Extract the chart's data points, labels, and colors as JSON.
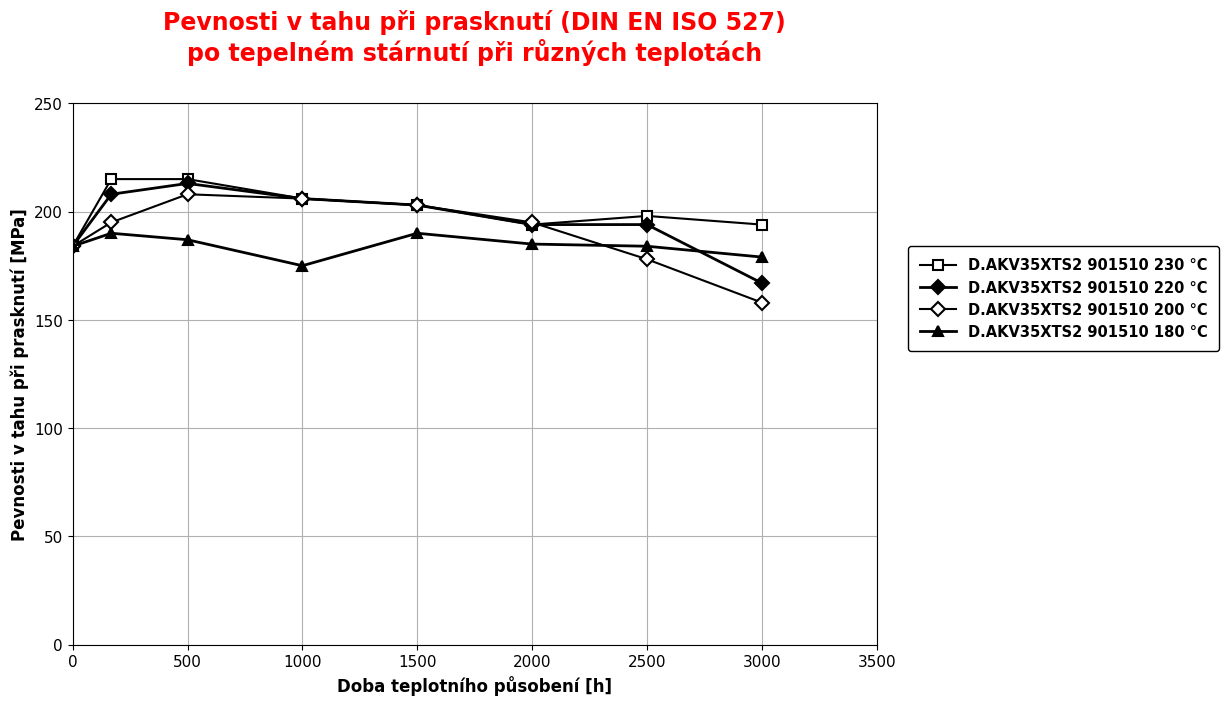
{
  "title_line1": "Pevnosti v tahu při prasknutí (DIN EN ISO 527)",
  "title_line2": "po tepelném stárnutí při různých teplotách",
  "title_color": "#ff0000",
  "xlabel": "Doba teplotního působení [h]",
  "ylabel": "Pevnosti v tahu při prasknutí [MPa]",
  "xlim": [
    0,
    3500
  ],
  "ylim": [
    0,
    250
  ],
  "xticks": [
    0,
    500,
    1000,
    1500,
    2000,
    2500,
    3000,
    3500
  ],
  "yticks": [
    0,
    50,
    100,
    150,
    200,
    250
  ],
  "series": [
    {
      "label": "D.AKV35XTS2 901510 230 °C",
      "x": [
        0,
        168,
        500,
        1000,
        1500,
        2000,
        2500,
        3000
      ],
      "y": [
        184,
        215,
        215,
        206,
        203,
        194,
        198,
        194
      ],
      "color": "#000000",
      "marker": "s",
      "marker_filled": false,
      "linewidth": 1.5,
      "markersize": 7
    },
    {
      "label": "D.AKV35XTS2 901510 220 °C",
      "x": [
        0,
        168,
        500,
        1000,
        1500,
        2000,
        2500,
        3000
      ],
      "y": [
        184,
        208,
        213,
        206,
        203,
        194,
        194,
        167
      ],
      "color": "#000000",
      "marker": "D",
      "marker_filled": true,
      "linewidth": 2.0,
      "markersize": 7
    },
    {
      "label": "D.AKV35XTS2 901510 200 °C",
      "x": [
        0,
        168,
        500,
        1000,
        1500,
        2000,
        2500,
        3000
      ],
      "y": [
        184,
        195,
        208,
        206,
        203,
        195,
        178,
        158
      ],
      "color": "#000000",
      "marker": "D",
      "marker_filled": false,
      "linewidth": 1.5,
      "markersize": 7
    },
    {
      "label": "D.AKV35XTS2 901510 180 °C",
      "x": [
        0,
        168,
        500,
        1000,
        1500,
        2000,
        2500,
        3000
      ],
      "y": [
        184,
        190,
        187,
        175,
        190,
        185,
        184,
        179
      ],
      "color": "#000000",
      "marker": "^",
      "marker_filled": true,
      "linewidth": 2.0,
      "markersize": 7
    }
  ],
  "background_color": "#ffffff",
  "grid_color": "#b0b0b0",
  "title_fontsize": 17,
  "axis_label_fontsize": 12,
  "tick_fontsize": 11,
  "legend_fontsize": 10.5
}
